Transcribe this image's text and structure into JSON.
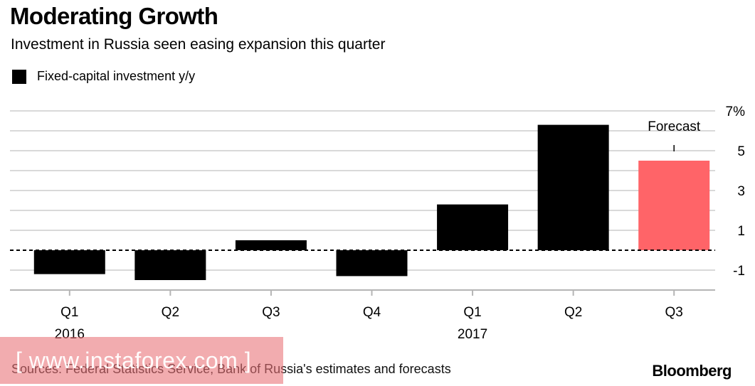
{
  "header": {
    "title": "Moderating Growth",
    "subtitle": "Investment in Russia seen easing expansion this quarter",
    "legend_label": "Fixed-capital investment y/y"
  },
  "footer": {
    "source": "Sources: Federal Statistics Service, Bank of Russia's estimates and forecasts",
    "brand": "Bloomberg"
  },
  "watermark": {
    "text": "[ www.instaforex.com ]"
  },
  "colors": {
    "actual": "#000000",
    "forecast": "#ff6468",
    "grid": "#d9d9d9",
    "watermark": "#e87076"
  },
  "chart_data": {
    "type": "bar",
    "title": "Moderating Growth",
    "subtitle": "Investment in Russia seen easing expansion this quarter",
    "legend": [
      "Fixed-capital investment y/y"
    ],
    "categories": [
      "Q1",
      "Q2",
      "Q3",
      "Q4",
      "Q1",
      "Q2",
      "Q3"
    ],
    "years": [
      {
        "label": "2016",
        "at_category": 0
      },
      {
        "label": "2017",
        "at_category": 4
      }
    ],
    "series": [
      {
        "name": "Fixed-capital investment y/y",
        "values": [
          -1.2,
          -1.5,
          0.5,
          -1.3,
          2.3,
          6.3,
          4.5
        ],
        "forecast": [
          false,
          false,
          false,
          false,
          false,
          false,
          true
        ]
      }
    ],
    "annotation": {
      "text": "Forecast",
      "category_index": 6
    },
    "ylim": [
      -2,
      7.5
    ],
    "yticks": [
      -1,
      1,
      3,
      5,
      7
    ],
    "ytick_labels": [
      "-1",
      "1",
      "3",
      "5",
      "7%"
    ],
    "zero_line": "dashed",
    "grid": true,
    "xlabel": "",
    "ylabel": ""
  }
}
